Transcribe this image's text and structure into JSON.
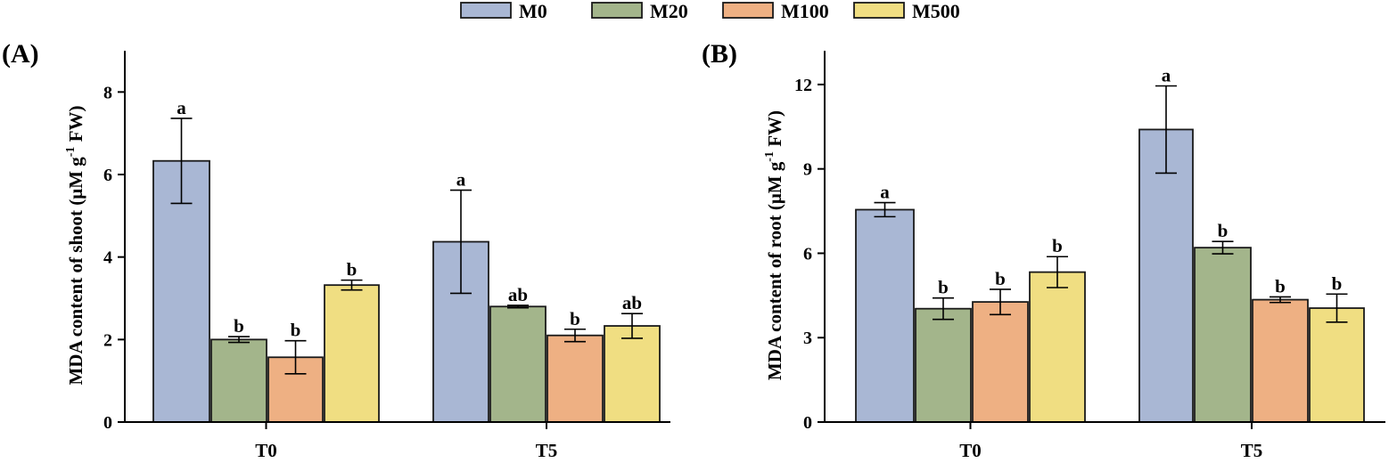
{
  "legend": {
    "items": [
      {
        "label": "M0",
        "color": "#a9b7d4"
      },
      {
        "label": "M20",
        "color": "#a3b58b"
      },
      {
        "label": "M100",
        "color": "#eeb083"
      },
      {
        "label": "M500",
        "color": "#f0de82"
      }
    ]
  },
  "chart_data": [
    {
      "type": "bar",
      "panel_label": "(A)",
      "title": "",
      "xlabel": "",
      "ylabel": "MDA content of shoot (μM g-1 FW)",
      "ylabel_parts": {
        "main": "MDA content of shoot (μM g",
        "sup": "-1",
        "tail": " FW)"
      },
      "ylim": [
        0,
        9
      ],
      "yticks": [
        0,
        2,
        4,
        6,
        8
      ],
      "categories": [
        "T0",
        "T5"
      ],
      "series": [
        {
          "name": "M0",
          "values": [
            6.33,
            4.37
          ],
          "errors": [
            1.03,
            1.25
          ],
          "letters": [
            "a",
            "a"
          ]
        },
        {
          "name": "M20",
          "values": [
            2.0,
            2.8
          ],
          "errors": [
            0.07,
            0.03
          ],
          "letters": [
            "b",
            "ab"
          ]
        },
        {
          "name": "M100",
          "values": [
            1.57,
            2.1
          ],
          "errors": [
            0.4,
            0.15
          ],
          "letters": [
            "b",
            "b"
          ]
        },
        {
          "name": "M500",
          "values": [
            3.32,
            2.33
          ],
          "errors": [
            0.12,
            0.3
          ],
          "letters": [
            "b",
            "ab"
          ]
        }
      ]
    },
    {
      "type": "bar",
      "panel_label": "(B)",
      "title": "",
      "xlabel": "",
      "ylabel": "MDA content of root (μM g-1 FW)",
      "ylabel_parts": {
        "main": "MDA content of root (μM g",
        "sup": "-1",
        "tail": " FW)"
      },
      "ylim": [
        0,
        13.2
      ],
      "yticks": [
        0,
        3,
        6,
        9,
        12
      ],
      "categories": [
        "T0",
        "T5"
      ],
      "series": [
        {
          "name": "M0",
          "values": [
            7.55,
            10.4
          ],
          "errors": [
            0.25,
            1.55
          ],
          "letters": [
            "a",
            "a"
          ]
        },
        {
          "name": "M20",
          "values": [
            4.03,
            6.2
          ],
          "errors": [
            0.38,
            0.22
          ],
          "letters": [
            "b",
            "b"
          ]
        },
        {
          "name": "M100",
          "values": [
            4.27,
            4.35
          ],
          "errors": [
            0.45,
            0.1
          ],
          "letters": [
            "b",
            "b"
          ]
        },
        {
          "name": "M500",
          "values": [
            5.33,
            4.05
          ],
          "errors": [
            0.55,
            0.5
          ],
          "letters": [
            "b",
            "b"
          ]
        }
      ]
    }
  ]
}
